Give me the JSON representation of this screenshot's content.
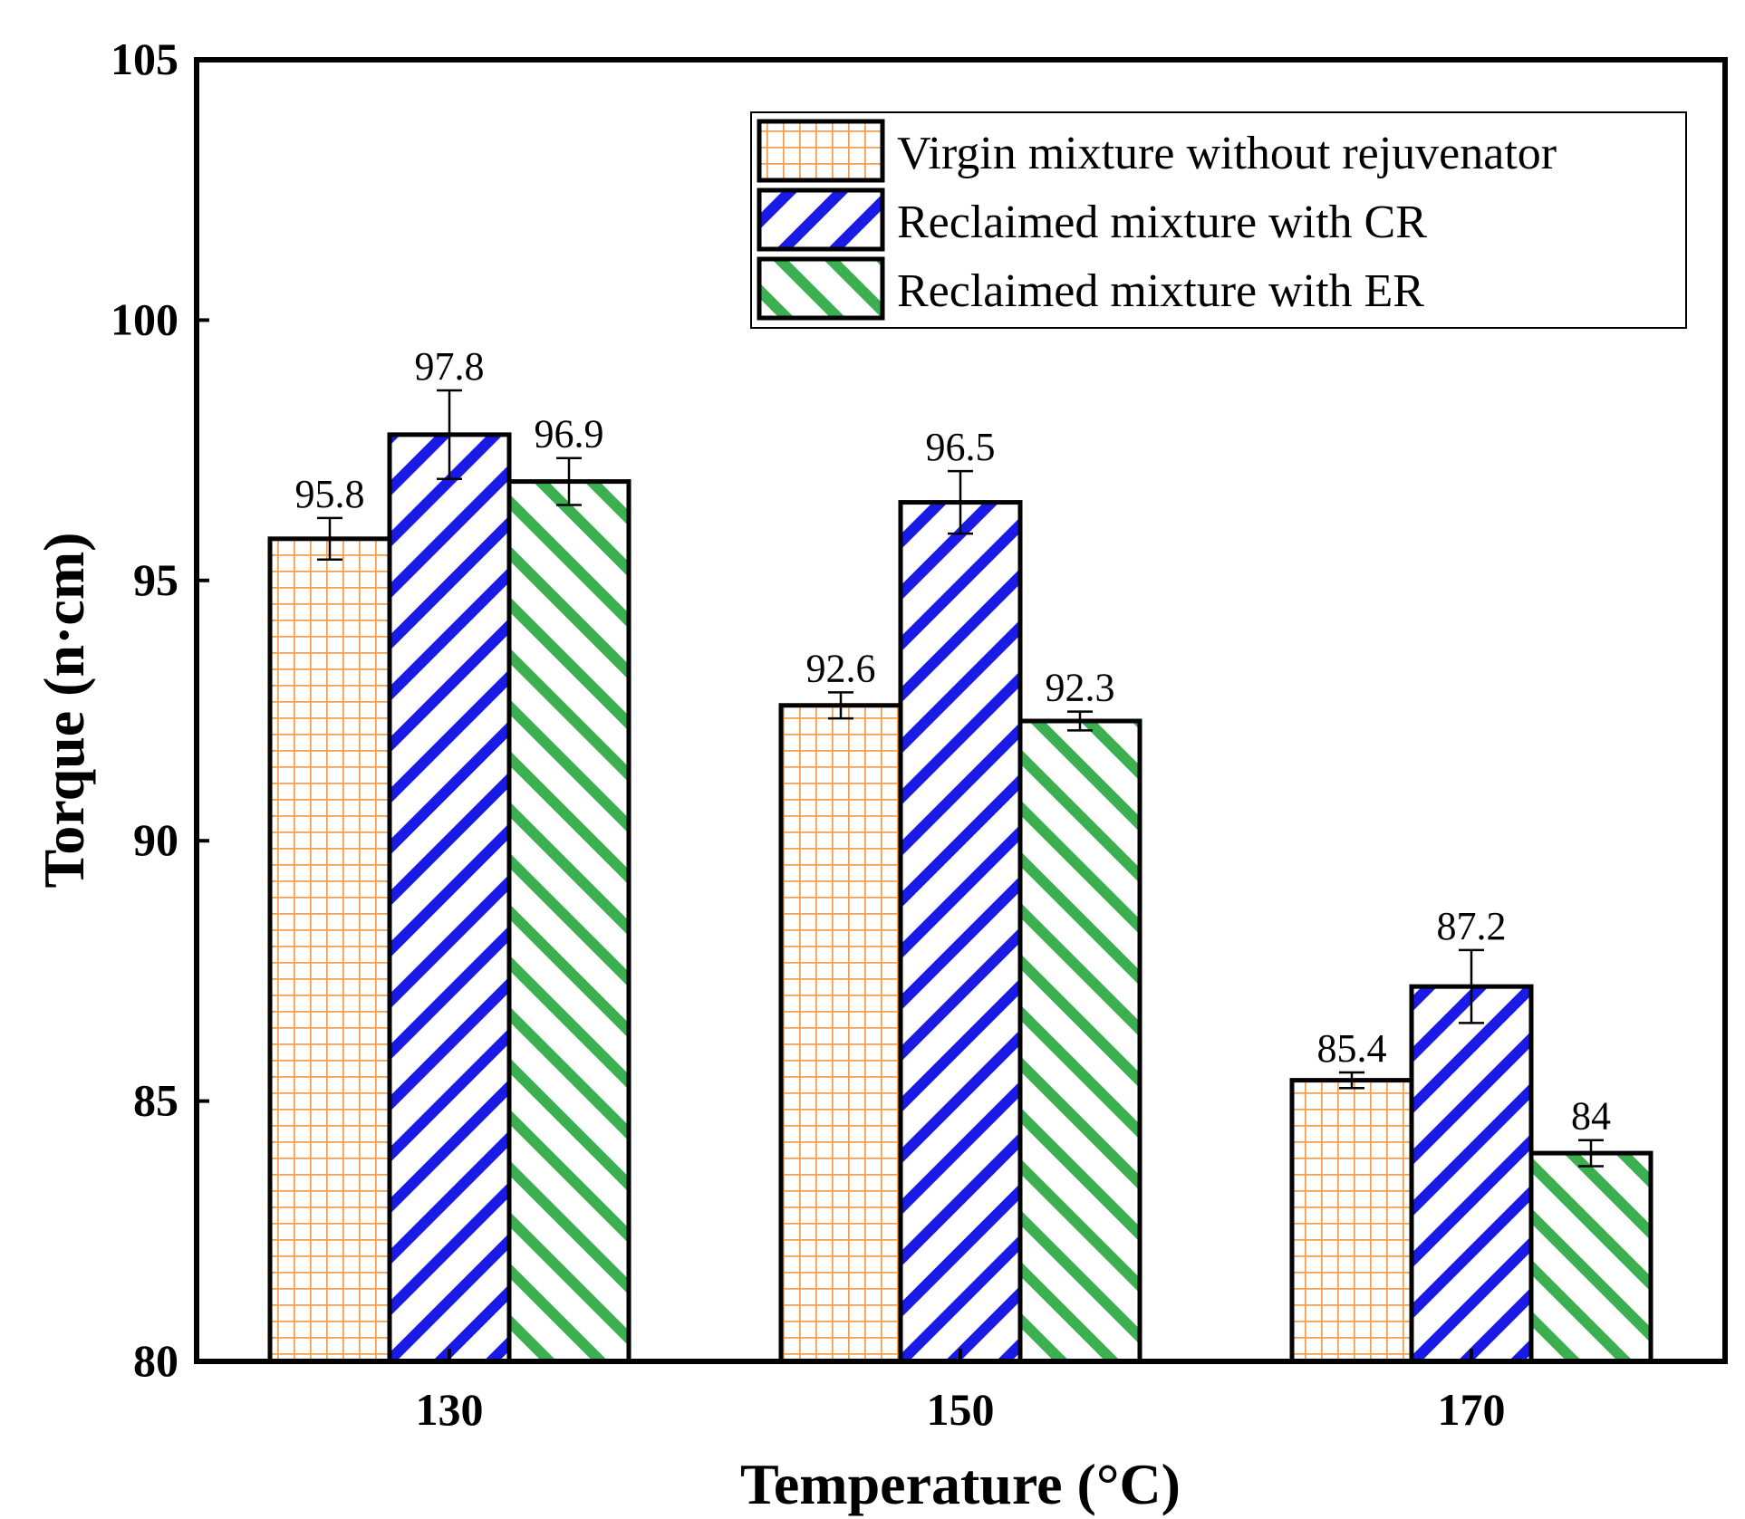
{
  "chart_data": {
    "type": "bar",
    "title": "",
    "xlabel": "Temperature (°C)",
    "ylabel": "Torque (n·cm)",
    "categories": [
      "130",
      "150",
      "170"
    ],
    "ylim": [
      80,
      105
    ],
    "yticks": [
      80,
      85,
      90,
      95,
      100,
      105
    ],
    "legend_position": "top-right",
    "series": [
      {
        "name": "Virgin mixture without rejuvenator",
        "pattern": "grid",
        "color": "#f0a050",
        "values": [
          95.8,
          92.6,
          85.4
        ],
        "labels": [
          "95.8",
          "92.6",
          "85.4"
        ],
        "errors": [
          0.4,
          0.25,
          0.15
        ]
      },
      {
        "name": "Reclaimed mixture with CR",
        "pattern": "forward-hatch",
        "color": "#1a1ae6",
        "values": [
          97.8,
          96.5,
          87.2
        ],
        "labels": [
          "97.8",
          "96.5",
          "87.2"
        ],
        "errors": [
          0.85,
          0.6,
          0.7
        ]
      },
      {
        "name": "Reclaimed mixture with ER",
        "pattern": "back-hatch",
        "color": "#3cb050",
        "values": [
          96.9,
          92.3,
          84.0
        ],
        "labels": [
          "96.9",
          "92.3",
          "84"
        ],
        "errors": [
          0.45,
          0.18,
          0.25
        ]
      }
    ]
  }
}
